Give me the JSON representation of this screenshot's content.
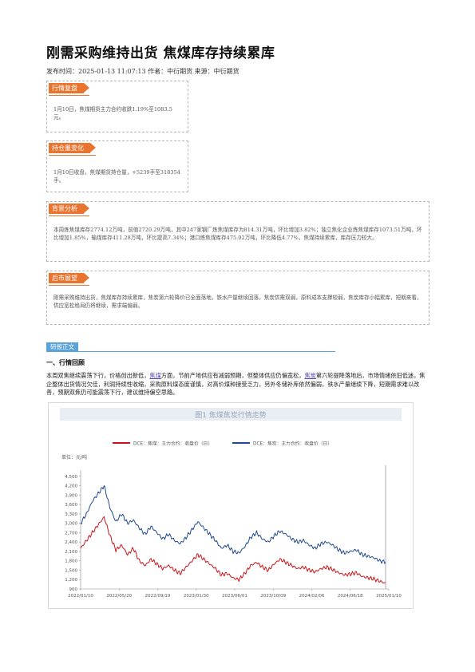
{
  "article": {
    "title": "刚需采购维持出货 焦煤库存持续累库",
    "meta": "发布时间：2025-01-13 11:07:13 作者：中衍期货 来源：中衍期货"
  },
  "sections": [
    {
      "tag": "行情复盘",
      "text": "1月10日，焦煤期货主力合约收跌1.19%至1083.5元。"
    },
    {
      "tag": "持仓量变化",
      "text": "1月10日收盘，焦煤期货持仓量，+5239手至318354手。"
    },
    {
      "tag": "背景分析",
      "text": "本周炼焦煤库存2774.12万吨，前值2720.29万吨，其中247家钢厂炼焦煤库存为814.31万吨，环比增加3.82%；独立焦化企业炼焦煤库存1073.51万吨，环比增加1.85%，输煤库存411.28万吨，环比提高7.34%；港口炼焦煤库存475.02万吨，环比降低4.77%，焦煤持续累库，库存压力较大。"
    },
    {
      "tag": "后市展望",
      "text": "刚需采购维持出货，焦煤库存持续累库，焦炭第六轮降价已全面落地，铁水产量继续回落，焦炭供需双弱，原料成本支撑较弱，焦炭库存小幅累库，短期来看，供应宽松格局仍将继续，需求端偏弱。"
    }
  ],
  "body": {
    "tag": "研报正文",
    "heading": "一、行情回顾",
    "p_part1": "本周双焦继续震荡下行，价格创出新低，",
    "link1": "焦煤",
    "p_part2": "方面，节前产地供应有减弱预期，但整体供应仍偏宽松，",
    "link2": "焦炭",
    "p_part3": "第六轮提降落地后，市场情绪依旧低迷，焦企整体出货情况欠佳，利润持续性收缩，采购原料煤态度谨慎，对高价煤种接受乏力，另外冬储补库依然偏弱，铁水产量继续下降，短期需求难以改善，预期双焦仍可能震荡下行，建议维持偏空思路。"
  },
  "chart_data": {
    "type": "line",
    "title": "图1 焦煤焦炭行情走势",
    "unit_label": "单位：元/吨",
    "ylim": [
      900,
      4700
    ],
    "yticks": [
      900,
      1200,
      1500,
      1800,
      2100,
      2400,
      2700,
      3000,
      3300,
      3600,
      3900,
      4200,
      4500
    ],
    "xticks": [
      "2022/01/10",
      "2022/05/20",
      "2022/09/19",
      "2023/01/30",
      "2023/06/01",
      "2023/10/09",
      "2024/02/06",
      "2024/06/18",
      "2025/01/10"
    ],
    "grid": false,
    "legend_position": "top",
    "series": [
      {
        "name": "DCE：焦煤：主力合约：收盘价（日）",
        "color": "#c8151b",
        "values": [
          2200,
          2450,
          2700,
          2950,
          3200,
          2600,
          2150,
          2300,
          2000,
          2200,
          1800,
          1650,
          1850,
          1700,
          1550,
          1650,
          1500,
          1400,
          1600,
          1800,
          2000,
          1850,
          1700,
          1550,
          1350,
          1400,
          1250,
          1200,
          1400,
          1650,
          1750,
          1600,
          1500,
          1700,
          1850,
          1750,
          1650,
          1550,
          1600,
          1500,
          1450,
          1550,
          1600,
          1520,
          1420,
          1350,
          1380,
          1420,
          1300,
          1260,
          1220,
          1150,
          1083
        ]
      },
      {
        "name": "DCE：焦炭：主力合约：收盘价（日）",
        "color": "#1f4a8c",
        "values": [
          3000,
          3300,
          3700,
          3950,
          4200,
          3500,
          3050,
          3300,
          3000,
          3100,
          2850,
          2650,
          2900,
          2700,
          2500,
          2650,
          2450,
          2350,
          2550,
          2800,
          3050,
          2850,
          2650,
          2450,
          2200,
          2300,
          2100,
          2050,
          2250,
          2550,
          2700,
          2500,
          2400,
          2600,
          2750,
          2650,
          2500,
          2400,
          2450,
          2300,
          2200,
          2350,
          2400,
          2300,
          2150,
          2050,
          2100,
          2150,
          2000,
          1950,
          1900,
          1800,
          1760
        ]
      }
    ]
  }
}
